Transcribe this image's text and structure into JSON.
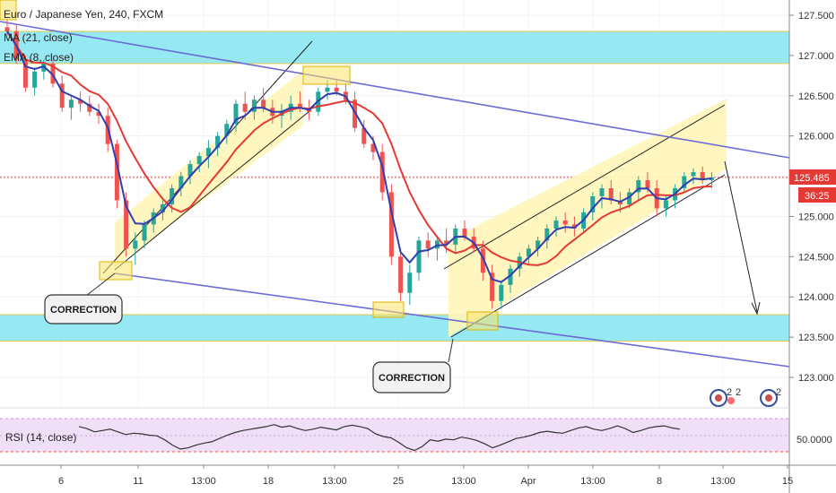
{
  "chart_data": {
    "type": "candlestick",
    "title": "Euro / Japanese Yen, 240, FXCM",
    "indicators": [
      "MA (21, close)",
      "EMA (8, close)"
    ],
    "rsi_label": "RSI (14, close)",
    "last_price": "125.485",
    "countdown": "36:25",
    "y_ticks": [
      "127.500",
      "127.000",
      "126.500",
      "126.000",
      "125.500",
      "125.000",
      "124.500",
      "124.000",
      "123.500",
      "123.000"
    ],
    "ylim": [
      122.75,
      127.75
    ],
    "rsi_tick": "50.0000",
    "x_ticks": [
      "6",
      "11",
      "13:00",
      "18",
      "13:00",
      "25",
      "13:00",
      "Apr",
      "13:00",
      "8",
      "13:00",
      "15"
    ],
    "annotations": [
      "CORRECTION",
      "CORRECTION"
    ],
    "badges": [
      "2",
      "2",
      "2"
    ],
    "colors": {
      "up": "#26a69a",
      "down": "#ef5350",
      "ma": "#e53935",
      "ema": "#2f3fb0",
      "trendline": "#6b6bd6",
      "zone": "#8be7f2",
      "channel": "#fff6b8",
      "rsi_band": "#efe0f7"
    },
    "candles": [
      [
        127.35,
        127.45,
        127.25,
        127.3
      ],
      [
        127.3,
        127.38,
        126.9,
        126.95
      ],
      [
        126.95,
        127.0,
        126.55,
        126.6
      ],
      [
        126.6,
        126.85,
        126.5,
        126.8
      ],
      [
        126.8,
        126.95,
        126.7,
        126.9
      ],
      [
        126.9,
        126.95,
        126.6,
        126.65
      ],
      [
        126.65,
        126.75,
        126.3,
        126.35
      ],
      [
        126.35,
        126.5,
        126.2,
        126.45
      ],
      [
        126.45,
        126.55,
        126.3,
        126.4
      ],
      [
        126.4,
        126.5,
        126.25,
        126.3
      ],
      [
        126.3,
        126.4,
        126.15,
        126.25
      ],
      [
        126.25,
        126.35,
        125.8,
        125.9
      ],
      [
        125.9,
        125.95,
        125.1,
        125.2
      ],
      [
        125.2,
        125.3,
        124.5,
        124.6
      ],
      [
        124.6,
        124.8,
        124.4,
        124.7
      ],
      [
        124.7,
        124.95,
        124.6,
        124.9
      ],
      [
        124.9,
        125.1,
        124.8,
        125.05
      ],
      [
        125.05,
        125.2,
        124.95,
        125.15
      ],
      [
        125.15,
        125.4,
        125.05,
        125.35
      ],
      [
        125.35,
        125.55,
        125.25,
        125.5
      ],
      [
        125.5,
        125.7,
        125.4,
        125.65
      ],
      [
        125.65,
        125.8,
        125.55,
        125.75
      ],
      [
        125.75,
        125.95,
        125.6,
        125.85
      ],
      [
        125.85,
        126.05,
        125.75,
        126.0
      ],
      [
        126.0,
        126.2,
        125.9,
        126.15
      ],
      [
        126.15,
        126.45,
        126.05,
        126.4
      ],
      [
        126.4,
        126.55,
        126.2,
        126.3
      ],
      [
        126.3,
        126.5,
        126.2,
        126.45
      ],
      [
        126.45,
        126.6,
        126.3,
        126.35
      ],
      [
        126.35,
        126.45,
        126.15,
        126.25
      ],
      [
        126.25,
        126.4,
        126.1,
        126.3
      ],
      [
        126.3,
        126.5,
        126.2,
        126.4
      ],
      [
        126.4,
        126.55,
        126.3,
        126.35
      ],
      [
        126.35,
        126.45,
        126.2,
        126.3
      ],
      [
        126.3,
        126.6,
        126.25,
        126.55
      ],
      [
        126.55,
        126.7,
        126.45,
        126.6
      ],
      [
        126.6,
        126.7,
        126.5,
        126.55
      ],
      [
        126.55,
        126.65,
        126.4,
        126.45
      ],
      [
        126.45,
        126.55,
        126.05,
        126.1
      ],
      [
        126.1,
        126.2,
        125.85,
        125.9
      ],
      [
        125.9,
        126.0,
        125.7,
        125.8
      ],
      [
        125.8,
        125.9,
        125.2,
        125.3
      ],
      [
        125.3,
        125.4,
        124.4,
        124.5
      ],
      [
        124.5,
        124.6,
        123.95,
        124.05
      ],
      [
        124.05,
        124.4,
        123.9,
        124.3
      ],
      [
        124.3,
        124.75,
        124.2,
        124.7
      ],
      [
        124.7,
        124.8,
        124.5,
        124.6
      ],
      [
        124.6,
        124.75,
        124.45,
        124.7
      ],
      [
        124.7,
        124.85,
        124.55,
        124.65
      ],
      [
        124.65,
        124.9,
        124.55,
        124.85
      ],
      [
        124.85,
        124.95,
        124.7,
        124.75
      ],
      [
        124.75,
        124.85,
        124.55,
        124.6
      ],
      [
        124.6,
        124.7,
        124.2,
        124.3
      ],
      [
        124.3,
        124.4,
        123.85,
        123.95
      ],
      [
        123.95,
        124.2,
        123.85,
        124.15
      ],
      [
        124.15,
        124.4,
        124.05,
        124.35
      ],
      [
        124.35,
        124.55,
        124.25,
        124.5
      ],
      [
        124.5,
        124.65,
        124.4,
        124.6
      ],
      [
        124.6,
        124.75,
        124.5,
        124.7
      ],
      [
        124.7,
        124.9,
        124.6,
        124.85
      ],
      [
        124.85,
        125.0,
        124.75,
        124.95
      ],
      [
        124.95,
        125.05,
        124.8,
        124.9
      ],
      [
        124.9,
        125.0,
        124.75,
        124.85
      ],
      [
        124.85,
        125.1,
        124.8,
        125.05
      ],
      [
        125.05,
        125.3,
        124.95,
        125.25
      ],
      [
        125.25,
        125.4,
        125.1,
        125.35
      ],
      [
        125.35,
        125.45,
        125.15,
        125.2
      ],
      [
        125.2,
        125.3,
        125.05,
        125.15
      ],
      [
        125.15,
        125.35,
        125.1,
        125.3
      ],
      [
        125.3,
        125.5,
        125.2,
        125.45
      ],
      [
        125.45,
        125.55,
        125.3,
        125.35
      ],
      [
        125.35,
        125.45,
        125.0,
        125.1
      ],
      [
        125.1,
        125.25,
        125.0,
        125.2
      ],
      [
        125.2,
        125.4,
        125.1,
        125.35
      ],
      [
        125.35,
        125.55,
        125.3,
        125.5
      ],
      [
        125.5,
        125.6,
        125.4,
        125.55
      ],
      [
        125.55,
        125.62,
        125.4,
        125.45
      ],
      [
        125.45,
        125.55,
        125.35,
        125.485
      ]
    ],
    "rsi_values": [
      58,
      55,
      50,
      52,
      54,
      50,
      46,
      48,
      47,
      45,
      44,
      38,
      30,
      24,
      26,
      30,
      33,
      35,
      40,
      45,
      49,
      52,
      54,
      56,
      58,
      61,
      57,
      59,
      55,
      52,
      54,
      57,
      55,
      53,
      58,
      60,
      58,
      55,
      47,
      43,
      41,
      34,
      26,
      22,
      28,
      38,
      36,
      39,
      38,
      42,
      40,
      37,
      32,
      26,
      30,
      35,
      40,
      42,
      45,
      49,
      51,
      49,
      48,
      52,
      56,
      58,
      54,
      52,
      55,
      59,
      55,
      49,
      52,
      56,
      58,
      59,
      56,
      54
    ]
  }
}
